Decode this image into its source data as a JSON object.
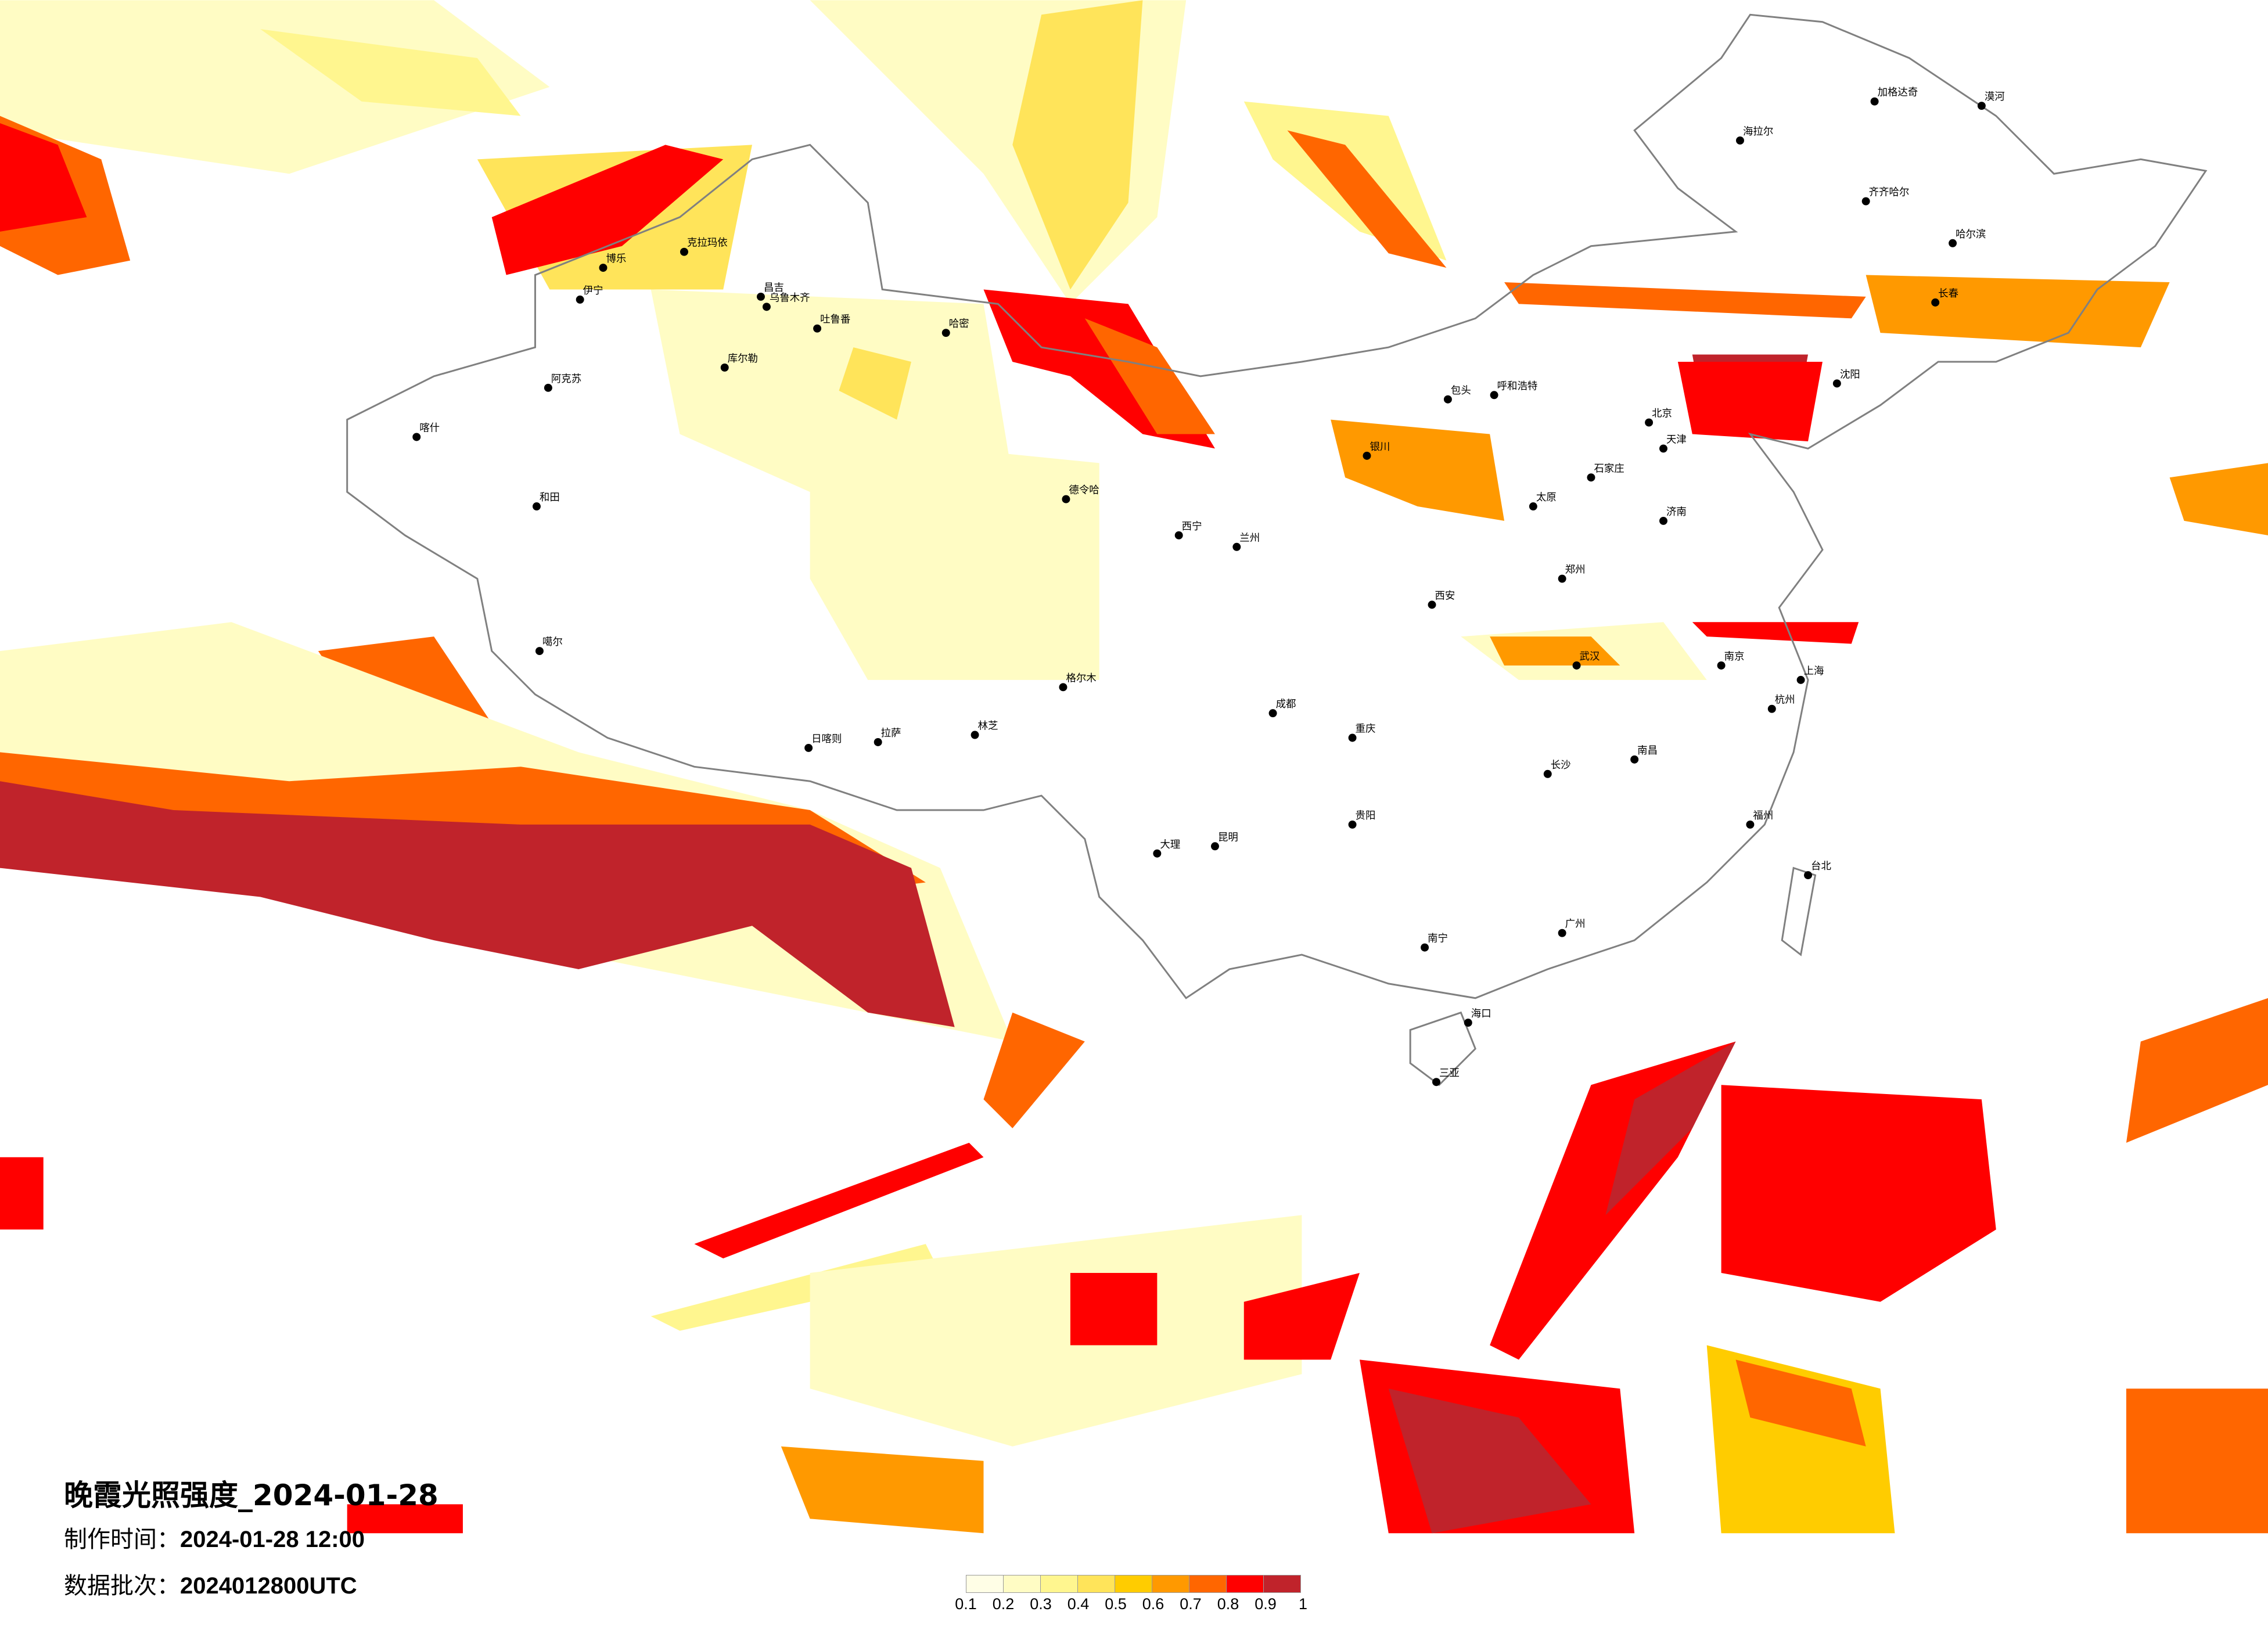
{
  "title": "晚霞光照强度_2024-01-28",
  "made_label": "制作时间：",
  "made_value": "2024-01-28 12:00",
  "batch_label": "数据批次：",
  "batch_value": "2024012800UTC",
  "legend": {
    "ticks": [
      "0.1",
      "0.2",
      "0.3",
      "0.4",
      "0.5",
      "0.6",
      "0.7",
      "0.8",
      "0.9",
      "1"
    ],
    "colors": [
      "#fffee6",
      "#fffcc4",
      "#fff68f",
      "#ffe45a",
      "#ffcc00",
      "#ff9900",
      "#ff6600",
      "#ff0000",
      "#c0232b"
    ]
  },
  "cities": [
    "克拉玛依",
    "博乐",
    "伊宁",
    "昌吉",
    "乌鲁木齐",
    "吐鲁番",
    "哈密",
    "库尔勒",
    "阿克苏",
    "和田",
    "喀什",
    "噶尔",
    "日喀则",
    "拉萨",
    "林芝",
    "德令哈",
    "格尔木",
    "漠河",
    "加格达奇",
    "海拉尔",
    "齐齐哈尔",
    "哈尔滨",
    "长春",
    "沈阳",
    "北京",
    "天津",
    "石家庄",
    "太原",
    "呼和浩特",
    "包头",
    "银川",
    "兰州",
    "西宁",
    "西安",
    "郑州",
    "济南",
    "南京",
    "上海",
    "杭州",
    "武汉",
    "长沙",
    "南昌",
    "福州",
    "台北",
    "广州",
    "南宁",
    "海口",
    "三亚",
    "昆明",
    "贵阳",
    "成都",
    "重庆",
    "大理"
  ]
}
